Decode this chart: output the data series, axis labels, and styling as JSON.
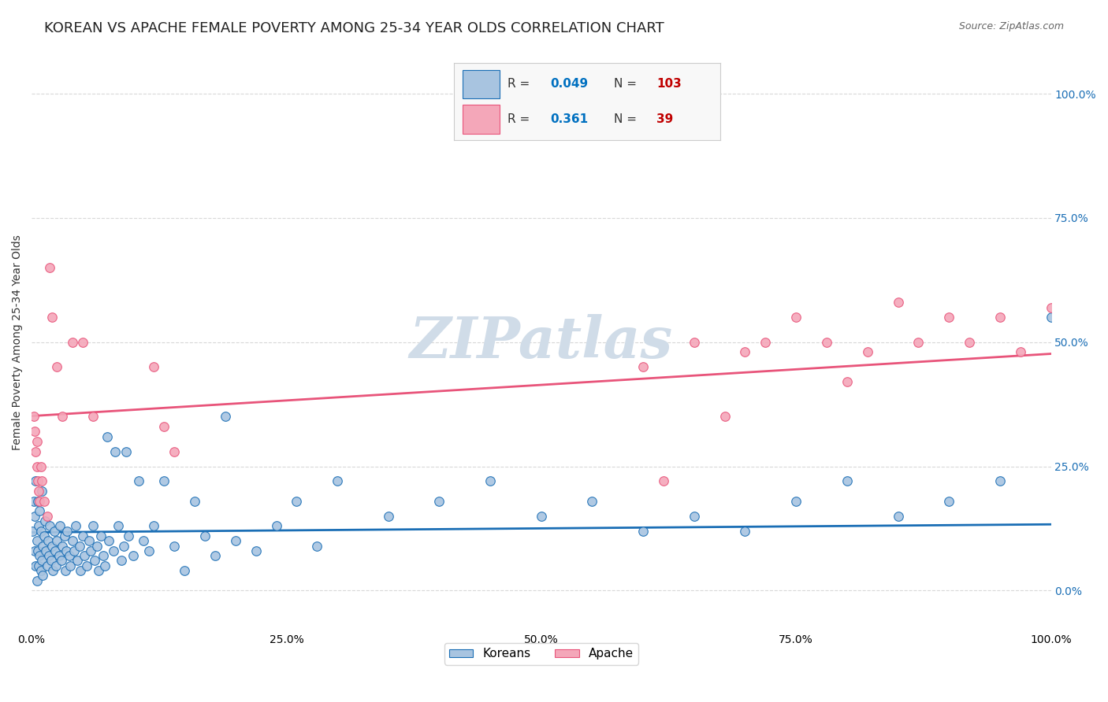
{
  "title": "KOREAN VS APACHE FEMALE POVERTY AMONG 25-34 YEAR OLDS CORRELATION CHART",
  "source": "Source: ZipAtlas.com",
  "ylabel": "Female Poverty Among 25-34 Year Olds",
  "ytick_labels": [
    "100.0%",
    "75.0%",
    "50.0%",
    "25.0%",
    "0.0%"
  ],
  "ytick_values": [
    1.0,
    0.75,
    0.5,
    0.25,
    0.0
  ],
  "xtick_labels": [
    "0.0%",
    "25.0%",
    "50.0%",
    "75.0%",
    "100.0%"
  ],
  "xtick_values": [
    0.0,
    0.25,
    0.5,
    0.75,
    1.0
  ],
  "koreans_R": 0.049,
  "koreans_N": 103,
  "apache_R": 0.361,
  "apache_N": 39,
  "korean_color": "#a8c4e0",
  "apache_color": "#f4a7b9",
  "korean_line_color": "#1a6eb5",
  "apache_line_color": "#e8547a",
  "legend_R_color": "#0070c0",
  "legend_N_color": "#c00000",
  "background_color": "#ffffff",
  "grid_color": "#c8c8c8",
  "watermark_color": "#d0dce8",
  "title_fontsize": 13,
  "axis_fontsize": 10,
  "legend_fontsize": 12,
  "koreans_x": [
    0.001,
    0.002,
    0.003,
    0.003,
    0.004,
    0.004,
    0.005,
    0.005,
    0.006,
    0.006,
    0.007,
    0.007,
    0.008,
    0.008,
    0.009,
    0.009,
    0.01,
    0.01,
    0.011,
    0.011,
    0.012,
    0.013,
    0.014,
    0.015,
    0.016,
    0.017,
    0.018,
    0.019,
    0.02,
    0.021,
    0.022,
    0.023,
    0.024,
    0.025,
    0.027,
    0.028,
    0.029,
    0.03,
    0.032,
    0.033,
    0.034,
    0.035,
    0.037,
    0.038,
    0.04,
    0.042,
    0.043,
    0.045,
    0.047,
    0.048,
    0.05,
    0.052,
    0.054,
    0.056,
    0.058,
    0.06,
    0.062,
    0.064,
    0.066,
    0.068,
    0.07,
    0.072,
    0.074,
    0.076,
    0.08,
    0.082,
    0.085,
    0.088,
    0.09,
    0.093,
    0.095,
    0.1,
    0.105,
    0.11,
    0.115,
    0.12,
    0.13,
    0.14,
    0.15,
    0.16,
    0.17,
    0.18,
    0.19,
    0.2,
    0.22,
    0.24,
    0.26,
    0.28,
    0.3,
    0.35,
    0.4,
    0.45,
    0.5,
    0.55,
    0.6,
    0.65,
    0.7,
    0.75,
    0.8,
    0.85,
    0.9,
    0.95,
    1.0
  ],
  "koreans_y": [
    0.12,
    0.18,
    0.08,
    0.15,
    0.05,
    0.22,
    0.1,
    0.02,
    0.08,
    0.18,
    0.05,
    0.13,
    0.07,
    0.16,
    0.04,
    0.12,
    0.06,
    0.2,
    0.09,
    0.03,
    0.11,
    0.14,
    0.08,
    0.05,
    0.1,
    0.07,
    0.13,
    0.06,
    0.09,
    0.04,
    0.12,
    0.08,
    0.05,
    0.1,
    0.07,
    0.13,
    0.06,
    0.09,
    0.11,
    0.04,
    0.08,
    0.12,
    0.07,
    0.05,
    0.1,
    0.08,
    0.13,
    0.06,
    0.09,
    0.04,
    0.11,
    0.07,
    0.05,
    0.1,
    0.08,
    0.13,
    0.06,
    0.09,
    0.04,
    0.11,
    0.07,
    0.05,
    0.31,
    0.1,
    0.08,
    0.28,
    0.13,
    0.06,
    0.09,
    0.28,
    0.11,
    0.07,
    0.22,
    0.1,
    0.08,
    0.13,
    0.22,
    0.09,
    0.04,
    0.18,
    0.11,
    0.07,
    0.35,
    0.1,
    0.08,
    0.13,
    0.18,
    0.09,
    0.22,
    0.15,
    0.18,
    0.22,
    0.15,
    0.18,
    0.12,
    0.15,
    0.12,
    0.18,
    0.22,
    0.15,
    0.18,
    0.22,
    0.55
  ],
  "apache_x": [
    0.002,
    0.003,
    0.004,
    0.005,
    0.005,
    0.006,
    0.007,
    0.008,
    0.009,
    0.01,
    0.012,
    0.015,
    0.018,
    0.02,
    0.025,
    0.03,
    0.04,
    0.05,
    0.06,
    0.12,
    0.13,
    0.14,
    0.6,
    0.65,
    0.7,
    0.72,
    0.75,
    0.78,
    0.8,
    0.82,
    0.85,
    0.87,
    0.9,
    0.92,
    0.95,
    0.97,
    1.0,
    0.62,
    0.68
  ],
  "apache_y": [
    0.35,
    0.32,
    0.28,
    0.25,
    0.3,
    0.22,
    0.2,
    0.18,
    0.25,
    0.22,
    0.18,
    0.15,
    0.65,
    0.55,
    0.45,
    0.35,
    0.5,
    0.5,
    0.35,
    0.45,
    0.33,
    0.28,
    0.45,
    0.5,
    0.48,
    0.5,
    0.55,
    0.5,
    0.42,
    0.48,
    0.58,
    0.5,
    0.55,
    0.5,
    0.55,
    0.48,
    0.57,
    0.22,
    0.35
  ]
}
